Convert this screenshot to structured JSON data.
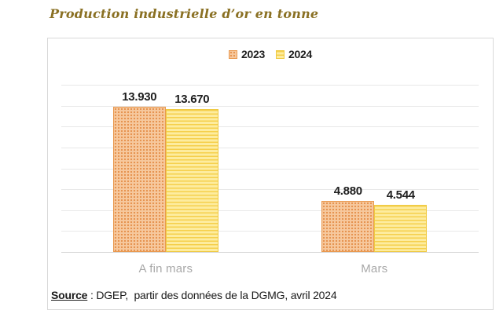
{
  "page": {
    "title": "Production industrielle d’or en tonne",
    "title_color": "#8a7023",
    "source": {
      "label": "Source",
      "text": " : DGEP,  partir des données de la DGMG, avril 2024"
    }
  },
  "chart_data": {
    "type": "bar",
    "title": "Production industrielle d’or en tonne",
    "categories": [
      "A fin mars",
      "Mars"
    ],
    "series": [
      {
        "name": "2023",
        "values": [
          13.93,
          4.88
        ],
        "labels": [
          "13.930",
          "4.880"
        ],
        "fill": "#f6c89d",
        "pattern": "dots",
        "pattern_color": "#e5914d",
        "border_color": "#e9994f"
      },
      {
        "name": "2024",
        "values": [
          13.67,
          4.544
        ],
        "labels": [
          "13.670",
          "4.544"
        ],
        "fill": "#fdec9f",
        "pattern": "hlines",
        "pattern_color": "#f5cf4b",
        "border_color": "#efca43"
      }
    ],
    "xlabel": "",
    "ylabel": "",
    "ylim": [
      0,
      16
    ],
    "gridline_step": 2,
    "grid": true,
    "legend_position": "top-center",
    "colors": {
      "gridline": "#e8e8e8",
      "axis_line": "#d4d4d4",
      "value_label": "#202020",
      "category_label": "#a8a8a8",
      "chart_border": "#d9d9d9"
    }
  }
}
